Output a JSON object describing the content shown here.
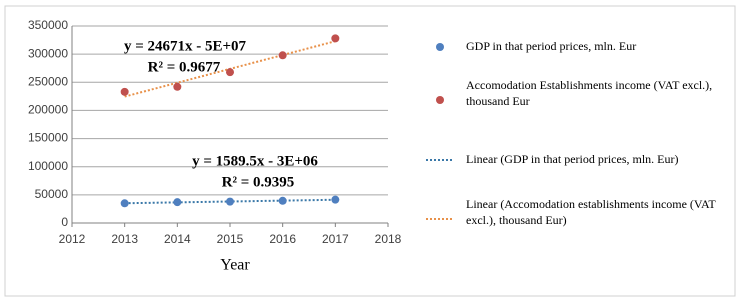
{
  "chart_data": {
    "type": "scatter",
    "x_label": "Year",
    "x": [
      2013,
      2014,
      2015,
      2016,
      2017
    ],
    "series": [
      {
        "name": "GDP in that period prices, mln. Eur",
        "color": "#4f7fbf",
        "values": [
          35000,
          37000,
          38000,
          39500,
          41500
        ],
        "trendline_name": "Linear (GDP in that period prices, mln. Eur)",
        "trendline_color": "#3a78a8",
        "equation": "y = 1589.5x - 3E+06",
        "r_squared": "R² = 0.9395"
      },
      {
        "name": "Accomodation Establishments income (VAT excl.), thousand Eur",
        "color": "#c0504d",
        "values": [
          233000,
          242000,
          268000,
          298000,
          328000
        ],
        "trendline_name": "Linear (Accomodation establishments income (VAT excl.), thousand Eur)",
        "trendline_color": "#e8914a",
        "equation": "y = 24671x - 5E+07",
        "r_squared": "R² = 0.9677"
      }
    ],
    "xlim": [
      2012,
      2018
    ],
    "xticks": [
      2012,
      2013,
      2014,
      2015,
      2016,
      2017,
      2018
    ],
    "ylim": [
      0,
      350000
    ],
    "yticks": [
      0,
      50000,
      100000,
      150000,
      200000,
      250000,
      300000,
      350000
    ],
    "grid": true
  }
}
